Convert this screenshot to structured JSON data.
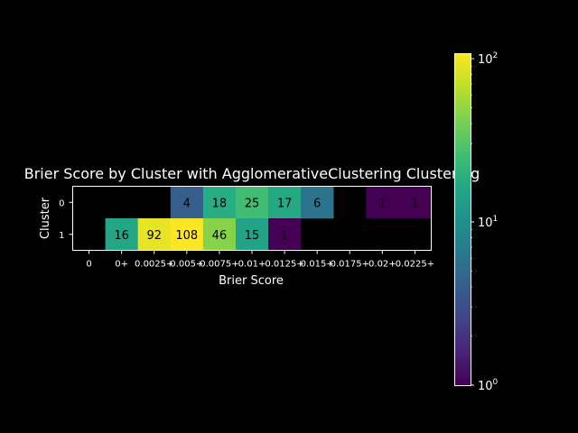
{
  "chart_data": {
    "type": "heatmap",
    "title": "Brier Score by Cluster with AgglomerativeClustering Clustering",
    "xlabel": "Brier Score",
    "ylabel": "Cluster",
    "x_categories": [
      "0",
      "0+",
      "0.0025+",
      "0.005+",
      "0.0075+",
      "0.01+",
      "0.0125+",
      "0.015+",
      "0.0175+",
      "0.02+",
      "0.0225+"
    ],
    "y_categories": [
      "0",
      "1"
    ],
    "values": [
      [
        null,
        null,
        null,
        4,
        18,
        25,
        17,
        6,
        null,
        1,
        1
      ],
      [
        null,
        16,
        92,
        108,
        46,
        15,
        1,
        null,
        null,
        null,
        null
      ]
    ],
    "color_scale": "log",
    "colormap": "viridis",
    "colorbar": {
      "range": [
        1,
        108
      ],
      "tick_values": [
        1,
        10,
        100
      ],
      "tick_labels": [
        "10^0",
        "10^1",
        "10^2"
      ]
    },
    "background_color": "#000000",
    "text_color": "#ffffff"
  }
}
